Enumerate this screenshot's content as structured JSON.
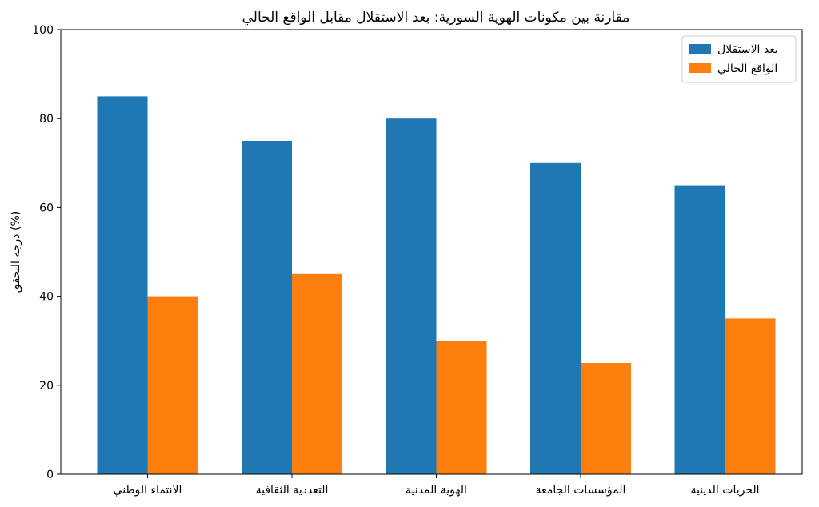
{
  "chart_data": {
    "type": "bar",
    "title": "مقارنة بين مكونات الهوية السورية: بعد الاستقلال مقابل الواقع الحالي",
    "xlabel": "",
    "ylabel": "درجة التحقق (%)",
    "ylim": [
      0,
      100
    ],
    "yticks": [
      0,
      20,
      40,
      60,
      80,
      100
    ],
    "grid": false,
    "legend_position": "top-right",
    "categories": [
      "الانتماء الوطني",
      "التعددية الثقافية",
      "الهوية المدنية",
      "المؤسسات الجامعة",
      "الحريات الدينية"
    ],
    "series": [
      {
        "name": "بعد الاستقلال",
        "color": "#1f77b4",
        "values": [
          85,
          75,
          80,
          70,
          65
        ]
      },
      {
        "name": "الواقع الحالي",
        "color": "#ff7f0e",
        "values": [
          40,
          45,
          30,
          25,
          35
        ]
      }
    ]
  }
}
